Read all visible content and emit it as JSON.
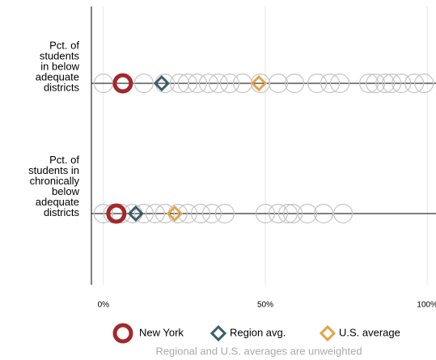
{
  "chart_data": {
    "type": "dotplot",
    "categories": [
      [
        "Pct. of",
        "students",
        "in below",
        "adequate",
        "districts"
      ],
      [
        "Pct. of",
        "students in",
        "chronically",
        "below",
        "adequate",
        "districts"
      ]
    ],
    "others": {
      "color": "#c4c4c4",
      "values": [
        [
          0,
          12.5,
          19,
          23.5,
          26,
          29,
          32.5,
          35.5,
          39,
          43,
          48.5,
          54,
          59,
          66,
          70,
          73,
          82,
          84,
          87,
          89,
          92,
          96,
          99
        ],
        [
          0,
          3,
          5.5,
          9,
          12.5,
          16,
          19,
          23,
          26,
          30,
          33.5,
          37.5,
          50,
          54,
          57,
          58.5,
          63,
          68,
          74
        ]
      ]
    },
    "series": [
      {
        "name": "New York",
        "color": "#a3282b",
        "marker": "circle",
        "values": [
          6,
          4
        ]
      },
      {
        "name": "Region avg.",
        "color": "#3b5d6b",
        "marker": "diamond",
        "values": [
          18,
          10
        ]
      },
      {
        "name": "U.S. average",
        "color": "#e2a446",
        "marker": "diamond",
        "values": [
          48,
          22
        ]
      }
    ],
    "xlim": [
      -3.7,
      102.7
    ],
    "xticks": [
      {
        "value": 0,
        "label": "0%"
      },
      {
        "value": 50,
        "label": "50%"
      },
      {
        "value": 100,
        "label": "100%"
      }
    ],
    "grid": true,
    "note": "Regional and U.S. averages are unweighted"
  }
}
